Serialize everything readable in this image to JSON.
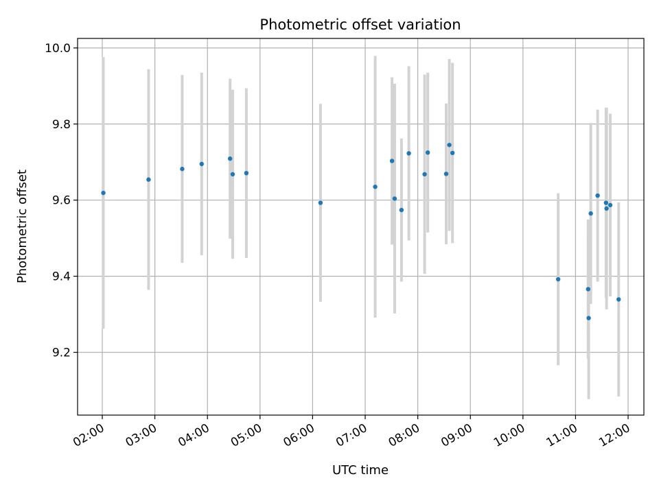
{
  "chart_data": {
    "type": "scatter",
    "title": "Photometric offset variation",
    "xlabel": "UTC time",
    "ylabel": "Photometric offset",
    "grid": true,
    "x_unit": "UTC hour",
    "xlim": [
      1.53,
      12.3
    ],
    "ylim": [
      9.035,
      10.025
    ],
    "x_ticks": [
      {
        "value": 2,
        "label": "02:00"
      },
      {
        "value": 3,
        "label": "03:00"
      },
      {
        "value": 4,
        "label": "04:00"
      },
      {
        "value": 5,
        "label": "05:00"
      },
      {
        "value": 6,
        "label": "06:00"
      },
      {
        "value": 7,
        "label": "07:00"
      },
      {
        "value": 8,
        "label": "08:00"
      },
      {
        "value": 9,
        "label": "09:00"
      },
      {
        "value": 10,
        "label": "10:00"
      },
      {
        "value": 11,
        "label": "11:00"
      },
      {
        "value": 12,
        "label": "12:00"
      }
    ],
    "y_ticks": [
      {
        "value": 9.2,
        "label": "9.2"
      },
      {
        "value": 9.4,
        "label": "9.4"
      },
      {
        "value": 9.6,
        "label": "9.6"
      },
      {
        "value": 9.8,
        "label": "9.8"
      },
      {
        "value": 10.0,
        "label": "10.0"
      }
    ],
    "point_color": "#1f77b4",
    "errorbar_color": "#d3d3d3",
    "points": [
      {
        "x": 2.02,
        "y": 9.619,
        "err": 0.357
      },
      {
        "x": 2.88,
        "y": 9.654,
        "err": 0.29
      },
      {
        "x": 3.52,
        "y": 9.682,
        "err": 0.247
      },
      {
        "x": 3.89,
        "y": 9.695,
        "err": 0.24
      },
      {
        "x": 4.43,
        "y": 9.709,
        "err": 0.21
      },
      {
        "x": 4.48,
        "y": 9.668,
        "err": 0.222
      },
      {
        "x": 4.74,
        "y": 9.671,
        "err": 0.223
      },
      {
        "x": 6.15,
        "y": 9.593,
        "err": 0.26
      },
      {
        "x": 7.19,
        "y": 9.635,
        "err": 0.344
      },
      {
        "x": 7.51,
        "y": 9.703,
        "err": 0.22
      },
      {
        "x": 7.56,
        "y": 9.604,
        "err": 0.302
      },
      {
        "x": 7.69,
        "y": 9.574,
        "err": 0.188
      },
      {
        "x": 7.83,
        "y": 9.723,
        "err": 0.229
      },
      {
        "x": 8.13,
        "y": 9.668,
        "err": 0.262
      },
      {
        "x": 8.19,
        "y": 9.725,
        "err": 0.21
      },
      {
        "x": 8.54,
        "y": 9.669,
        "err": 0.185
      },
      {
        "x": 8.6,
        "y": 9.745,
        "err": 0.226
      },
      {
        "x": 8.66,
        "y": 9.724,
        "err": 0.237
      },
      {
        "x": 10.67,
        "y": 9.392,
        "err": 0.226
      },
      {
        "x": 11.24,
        "y": 9.366,
        "err": 0.183
      },
      {
        "x": 11.25,
        "y": 9.29,
        "err": 0.213
      },
      {
        "x": 11.29,
        "y": 9.565,
        "err": 0.238
      },
      {
        "x": 11.42,
        "y": 9.612,
        "err": 0.226
      },
      {
        "x": 11.58,
        "y": 9.593,
        "err": 0.25
      },
      {
        "x": 11.59,
        "y": 9.578,
        "err": 0.265
      },
      {
        "x": 11.66,
        "y": 9.587,
        "err": 0.24
      },
      {
        "x": 11.82,
        "y": 9.339,
        "err": 0.255
      }
    ]
  }
}
